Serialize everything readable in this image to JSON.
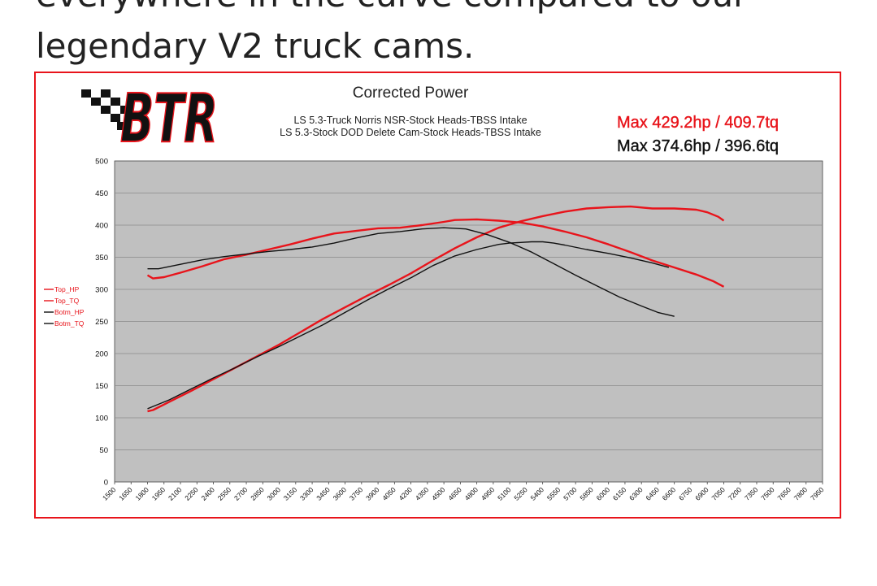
{
  "article": {
    "line1": "everywhere in the curve compared to our",
    "line2": "legendary V2 truck cams."
  },
  "chart_data": {
    "type": "line",
    "logo": "BTR",
    "title": "Corrected Power",
    "subtitle_lines": [
      "LS 5.3-Truck Norris NSR-Stock Heads-TBSS Intake",
      "LS 5.3-Stock DOD Delete Cam-Stock Heads-TBSS Intake"
    ],
    "max_labels": [
      {
        "text": "Max 429.2hp / 409.7tq",
        "color": "#e8141b"
      },
      {
        "text": "Max 374.6hp / 396.6tq",
        "color": "#111111"
      }
    ],
    "xlim": [
      1500,
      7950
    ],
    "ylim": [
      0,
      500
    ],
    "y_ticks": [
      0,
      50,
      100,
      150,
      200,
      250,
      300,
      350,
      400,
      450,
      500
    ],
    "x_ticks": [
      1500,
      1650,
      1800,
      1950,
      2100,
      2250,
      2400,
      2550,
      2700,
      2850,
      3000,
      3150,
      3300,
      3450,
      3600,
      3750,
      3900,
      4050,
      4200,
      4350,
      4500,
      4650,
      4800,
      4950,
      5100,
      5250,
      5400,
      5550,
      5700,
      5850,
      6000,
      6150,
      6300,
      6450,
      6600,
      6750,
      6900,
      7050,
      7200,
      7350,
      7500,
      7650,
      7800,
      7950
    ],
    "grid": true,
    "legend_position": "left",
    "plot_background": "#c0c0c0",
    "series": [
      {
        "name": "Top_HP",
        "color": "#e8141b",
        "x": [
          1800,
          1850,
          2000,
          2200,
          2400,
          2600,
          2800,
          3000,
          3200,
          3400,
          3600,
          3800,
          4000,
          4200,
          4400,
          4600,
          4800,
          5000,
          5200,
          5400,
          5600,
          5800,
          6000,
          6200,
          6400,
          6600,
          6800,
          6900,
          7000,
          7050
        ],
        "y": [
          110,
          112,
          125,
          142,
          160,
          178,
          196,
          214,
          234,
          254,
          272,
          290,
          307,
          325,
          345,
          364,
          381,
          396,
          406,
          414,
          421,
          426,
          428,
          429,
          426,
          426,
          424,
          420,
          413,
          407
        ]
      },
      {
        "name": "Top_TQ",
        "color": "#e8141b",
        "x": [
          1800,
          1850,
          1950,
          2100,
          2300,
          2500,
          2700,
          2900,
          3100,
          3300,
          3500,
          3700,
          3900,
          4100,
          4300,
          4500,
          4600,
          4800,
          5000,
          5200,
          5400,
          5600,
          5800,
          6000,
          6200,
          6400,
          6600,
          6800,
          6950,
          7050
        ],
        "y": [
          322,
          317,
          319,
          326,
          336,
          347,
          354,
          362,
          370,
          379,
          387,
          391,
          395,
          396,
          400,
          405,
          408,
          409,
          407,
          404,
          398,
          390,
          381,
          370,
          358,
          345,
          334,
          323,
          313,
          304
        ]
      },
      {
        "name": "Botm_HP",
        "color": "#111111",
        "x": [
          1800,
          2000,
          2200,
          2400,
          2600,
          2800,
          3000,
          3200,
          3400,
          3600,
          3800,
          4000,
          4200,
          4400,
          4600,
          4800,
          5000,
          5100,
          5200,
          5300,
          5400,
          5500,
          5600,
          5800,
          6000,
          6200,
          6400,
          6550
        ],
        "y": [
          114,
          128,
          145,
          162,
          178,
          195,
          211,
          228,
          245,
          264,
          283,
          301,
          318,
          337,
          352,
          362,
          370,
          372,
          373,
          374,
          374,
          372,
          369,
          362,
          356,
          349,
          341,
          334
        ]
      },
      {
        "name": "Botm_TQ",
        "color": "#111111",
        "x": [
          1800,
          1900,
          2100,
          2300,
          2500,
          2700,
          2900,
          3100,
          3300,
          3500,
          3700,
          3900,
          4100,
          4300,
          4500,
          4700,
          4900,
          5100,
          5300,
          5500,
          5700,
          5900,
          6100,
          6300,
          6450,
          6600
        ],
        "y": [
          332,
          332,
          339,
          346,
          351,
          355,
          359,
          362,
          366,
          372,
          380,
          387,
          390,
          394,
          396,
          394,
          385,
          373,
          358,
          340,
          322,
          305,
          288,
          274,
          264,
          258
        ]
      }
    ]
  }
}
